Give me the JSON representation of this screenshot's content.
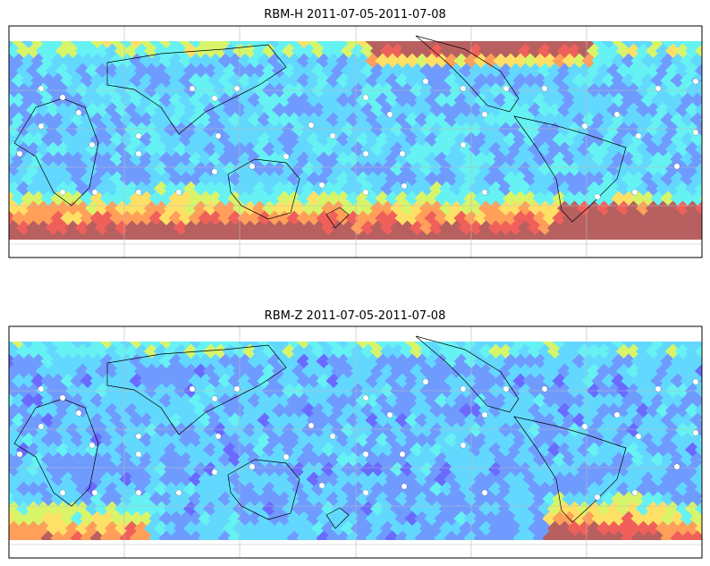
{
  "panels": [
    {
      "title": "RBM-H 2011-07-05-2011-07-08"
    },
    {
      "title": "RBM-Z 2011-07-05-2011-07-08"
    }
  ]
}
